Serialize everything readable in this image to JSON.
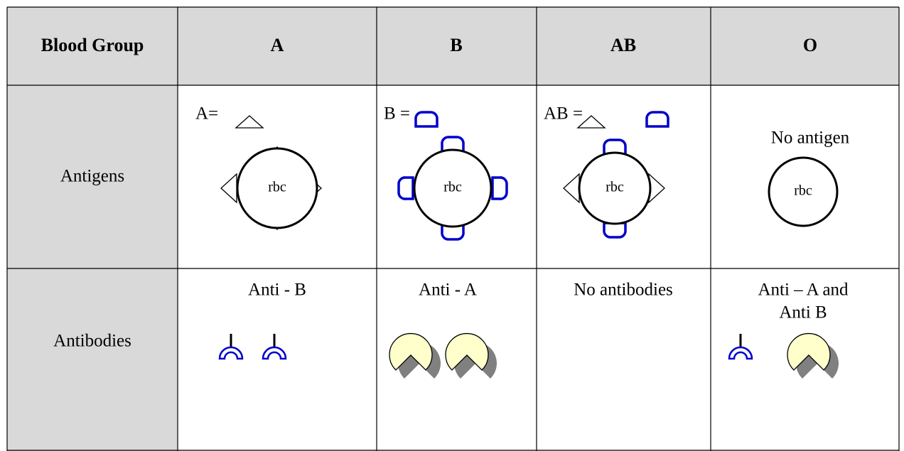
{
  "table": {
    "header": [
      "Blood Group",
      "A",
      "B",
      "AB",
      "O"
    ],
    "antigens": {
      "label": "Antigens",
      "cells": [
        {
          "legend": "A=",
          "rbc": "rbc"
        },
        {
          "legend": "B =",
          "rbc": "rbc"
        },
        {
          "legend": "AB =",
          "rbc": "rbc"
        },
        {
          "note": "No antigen",
          "rbc": "rbc"
        }
      ]
    },
    "antibodies": {
      "label": "Antibodies",
      "cells": [
        {
          "text": [
            "Anti - B"
          ]
        },
        {
          "text": [
            "Anti - A"
          ]
        },
        {
          "text": [
            "No antibodies"
          ]
        },
        {
          "text": [
            "Anti – A and",
            "Anti B"
          ]
        }
      ]
    }
  }
}
